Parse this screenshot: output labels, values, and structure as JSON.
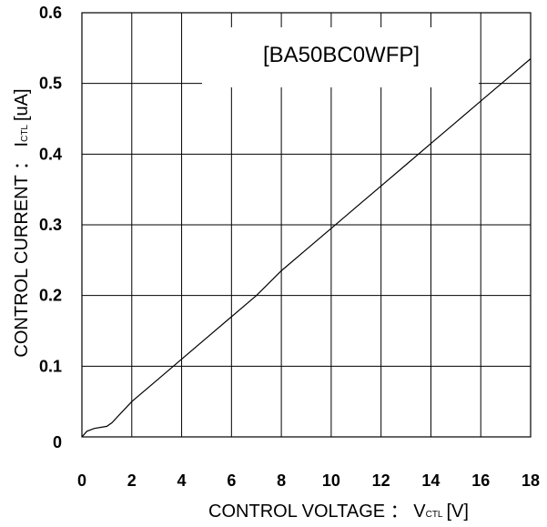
{
  "chart_data": {
    "type": "line",
    "part_label": "[BA50BC0WFP]",
    "xlabel": {
      "main": "CONTROL VOLTAGE ： V",
      "sub": "CTL",
      "unit": "[V]"
    },
    "ylabel": {
      "main": "CONTROL CURRENT ： I",
      "sub": "CTL",
      "unit": "[uA]"
    },
    "xlim": [
      0,
      18
    ],
    "ylim": [
      0,
      0.6
    ],
    "x_ticks": [
      "0",
      "2",
      "4",
      "6",
      "8",
      "10",
      "12",
      "14",
      "16",
      "18"
    ],
    "y_ticks": [
      "0",
      "0.1",
      "0.2",
      "0.3",
      "0.4",
      "0.5",
      "0.6"
    ],
    "grid": true,
    "series": [
      {
        "x": [
          0,
          0.2,
          0.5,
          1.0,
          1.2,
          2.0,
          3.0,
          4.0,
          5.0,
          6.0,
          7.0,
          8.0,
          9.0,
          10.0,
          11.0,
          12.0,
          13.0,
          14.0,
          15.0,
          16.0,
          17.0,
          18.0
        ],
        "y": [
          0.0,
          0.008,
          0.012,
          0.015,
          0.02,
          0.05,
          0.08,
          0.11,
          0.14,
          0.17,
          0.2,
          0.235,
          0.265,
          0.295,
          0.325,
          0.355,
          0.385,
          0.415,
          0.445,
          0.475,
          0.505,
          0.535
        ]
      }
    ]
  }
}
